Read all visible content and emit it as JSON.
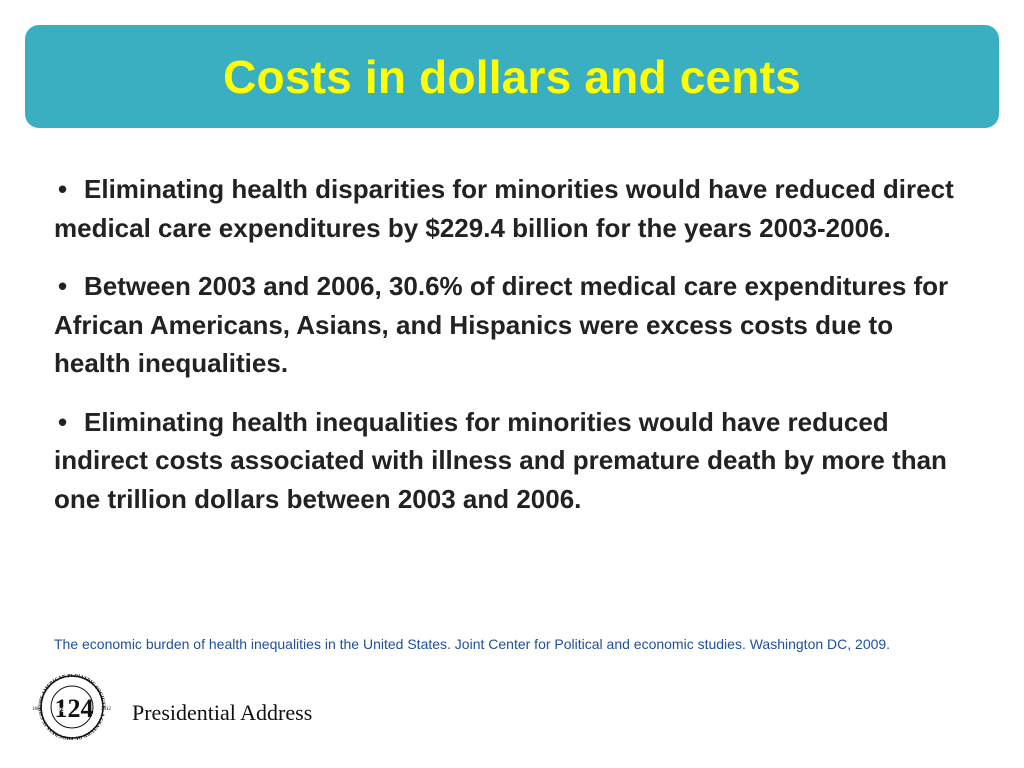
{
  "slide": {
    "title": "Costs in dollars and cents",
    "bullet_glyph": "•",
    "bullets": [
      "Eliminating health disparities for minorities would have reduced direct medical care expenditures by $229.4 billion for the years 2003-2006.",
      "Between 2003 and 2006, 30.6% of direct medical care expenditures for African Americans, Asians, and Hispanics were excess costs due to health inequalities.",
      "Eliminating health inequalities for minorities would have reduced indirect costs associated with illness and premature death by more than one trillion dollars between 2003 and 2006."
    ],
    "citation": "The economic burden of health inequalities in the United States. Joint Center for Political and economic studies. Washington DC, 2009."
  },
  "footer": {
    "logo_icon": "aps-124-seal-icon",
    "logo_number": "124",
    "logo_initials": "APS",
    "logo_ring_text": "THE AMERICAN PEDIATRIC SOCIETY · A CENTURY OF PROGRESS IN CHILD HEALTH",
    "logo_year_start": "1888",
    "logo_year_end": "2012",
    "label": "Presidential Address"
  },
  "colors": {
    "banner": "#3aafc1",
    "title": "#ffff00",
    "body_text": "#222222",
    "citation": "#1f4f9c"
  }
}
